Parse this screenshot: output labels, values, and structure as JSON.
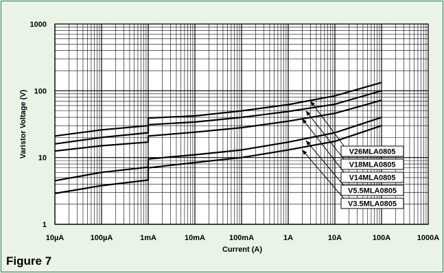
{
  "figure_label": "Figure 7",
  "chart_data": {
    "type": "line",
    "title": "",
    "xlabel": "Current (A)",
    "ylabel": "Varistor Voltage (V)",
    "xscale": "log",
    "yscale": "log",
    "xlim": [
      1e-05,
      1000
    ],
    "ylim": [
      1,
      1000
    ],
    "grid": true,
    "x_ticks": [
      {
        "value": 1e-05,
        "label": "10µA"
      },
      {
        "value": 0.0001,
        "label": "100µA"
      },
      {
        "value": 0.001,
        "label": "1mA"
      },
      {
        "value": 0.01,
        "label": "10mA"
      },
      {
        "value": 0.1,
        "label": "100mA"
      },
      {
        "value": 1,
        "label": "1A"
      },
      {
        "value": 10,
        "label": "10A"
      },
      {
        "value": 100,
        "label": "100A"
      },
      {
        "value": 1000,
        "label": "1000A"
      }
    ],
    "y_ticks": [
      {
        "value": 1,
        "label": "1"
      },
      {
        "value": 10,
        "label": "10"
      },
      {
        "value": 100,
        "label": "100"
      },
      {
        "value": 1000,
        "label": "1000"
      }
    ],
    "series": [
      {
        "name": "V26MLA0805",
        "color": "#000000",
        "points": [
          [
            1e-05,
            21
          ],
          [
            0.0001,
            26
          ],
          [
            0.001,
            30
          ],
          [
            0.001,
            39
          ],
          [
            0.01,
            42
          ],
          [
            0.1,
            50
          ],
          [
            1,
            62
          ],
          [
            10,
            84
          ],
          [
            100,
            133
          ]
        ]
      },
      {
        "name": "V18MLA0805",
        "color": "#000000",
        "points": [
          [
            1e-05,
            16
          ],
          [
            0.0001,
            20
          ],
          [
            0.001,
            23.5
          ],
          [
            0.001,
            31
          ],
          [
            0.01,
            34
          ],
          [
            0.1,
            40
          ],
          [
            1,
            49
          ],
          [
            10,
            63
          ],
          [
            100,
            100
          ]
        ]
      },
      {
        "name": "V14MLA0805",
        "color": "#000000",
        "points": [
          [
            1e-05,
            12.5
          ],
          [
            0.0001,
            15
          ],
          [
            0.001,
            17
          ],
          [
            0.001,
            21
          ],
          [
            0.01,
            24
          ],
          [
            0.1,
            28
          ],
          [
            1,
            35
          ],
          [
            10,
            46
          ],
          [
            100,
            72
          ]
        ]
      },
      {
        "name": "V5.5MLA0805",
        "color": "#000000",
        "points": [
          [
            1e-05,
            4.5
          ],
          [
            0.0001,
            6
          ],
          [
            0.001,
            7.2
          ],
          [
            0.001,
            9.5
          ],
          [
            0.01,
            11
          ],
          [
            0.1,
            13
          ],
          [
            1,
            17
          ],
          [
            10,
            23.5
          ],
          [
            100,
            40
          ]
        ]
      },
      {
        "name": "V3.5MLA0805",
        "color": "#000000",
        "points": [
          [
            1e-05,
            2.9
          ],
          [
            0.0001,
            3.8
          ],
          [
            0.001,
            4.6
          ],
          [
            0.001,
            7
          ],
          [
            0.01,
            8.4
          ],
          [
            0.1,
            10
          ],
          [
            1,
            13
          ],
          [
            10,
            17.5
          ],
          [
            100,
            30
          ]
        ]
      }
    ],
    "annotations": [
      {
        "label": "V26MLA0805",
        "points_to": [
          3,
          70
        ]
      },
      {
        "label": "V18MLA0805",
        "points_to": [
          2.4,
          50
        ]
      },
      {
        "label": "V14MLA0805",
        "points_to": [
          2.0,
          38
        ]
      },
      {
        "label": "V5.5MLA0805",
        "points_to": [
          2.4,
          18
        ]
      },
      {
        "label": "V3.5MLA0805",
        "points_to": [
          2.0,
          13
        ]
      }
    ]
  }
}
